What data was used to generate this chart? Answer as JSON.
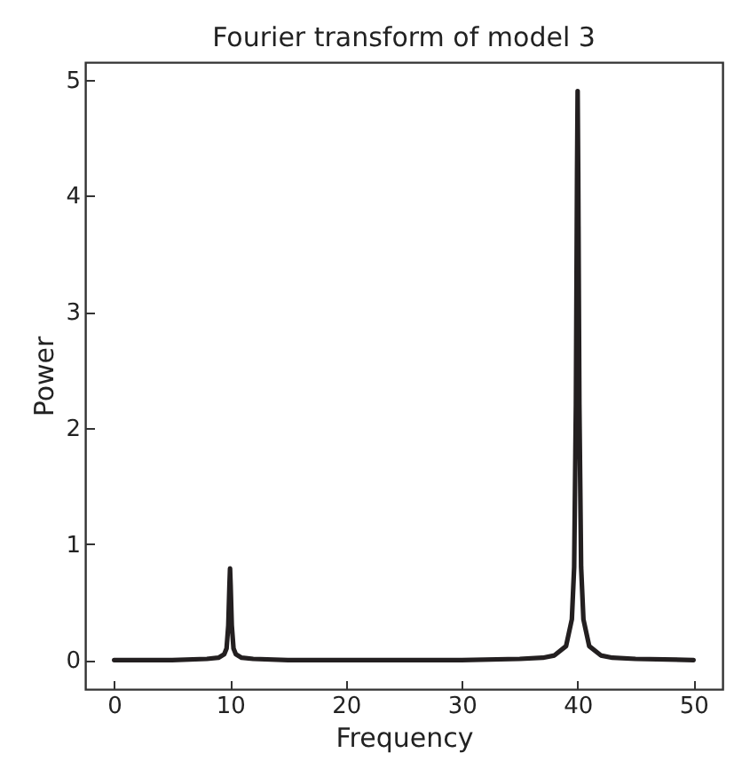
{
  "chart_data": {
    "type": "line",
    "title": "Fourier transform of model 3",
    "xlabel": "Frequency",
    "ylabel": "Power",
    "x": [
      0,
      5,
      8,
      9,
      9.5,
      9.7,
      9.85,
      9.95,
      10,
      10.05,
      10.15,
      10.3,
      10.5,
      11,
      12,
      15,
      20,
      25,
      30,
      35,
      37,
      38,
      39,
      39.5,
      39.7,
      39.85,
      39.95,
      40,
      40.05,
      40.15,
      40.3,
      40.5,
      41,
      42,
      43,
      45,
      50
    ],
    "series": [
      {
        "color": "#231f20",
        "values": [
          0,
          0,
          0.01,
          0.02,
          0.05,
          0.1,
          0.3,
          0.65,
          0.79,
          0.65,
          0.3,
          0.1,
          0.05,
          0.02,
          0.01,
          0,
          0,
          0,
          0,
          0.01,
          0.02,
          0.04,
          0.12,
          0.35,
          0.8,
          2.2,
          4.2,
          4.9,
          4.2,
          2.2,
          0.8,
          0.35,
          0.12,
          0.04,
          0.02,
          0.01,
          0
        ]
      }
    ],
    "xlim": [
      -2.5,
      52.5
    ],
    "xticks": [
      0,
      10,
      20,
      30,
      40,
      50
    ],
    "ylim": [
      -0.25,
      5.15
    ],
    "yticks": [
      0,
      1,
      2,
      3,
      4,
      5
    ],
    "grid": false,
    "marker": "none",
    "line_style": "solid"
  }
}
